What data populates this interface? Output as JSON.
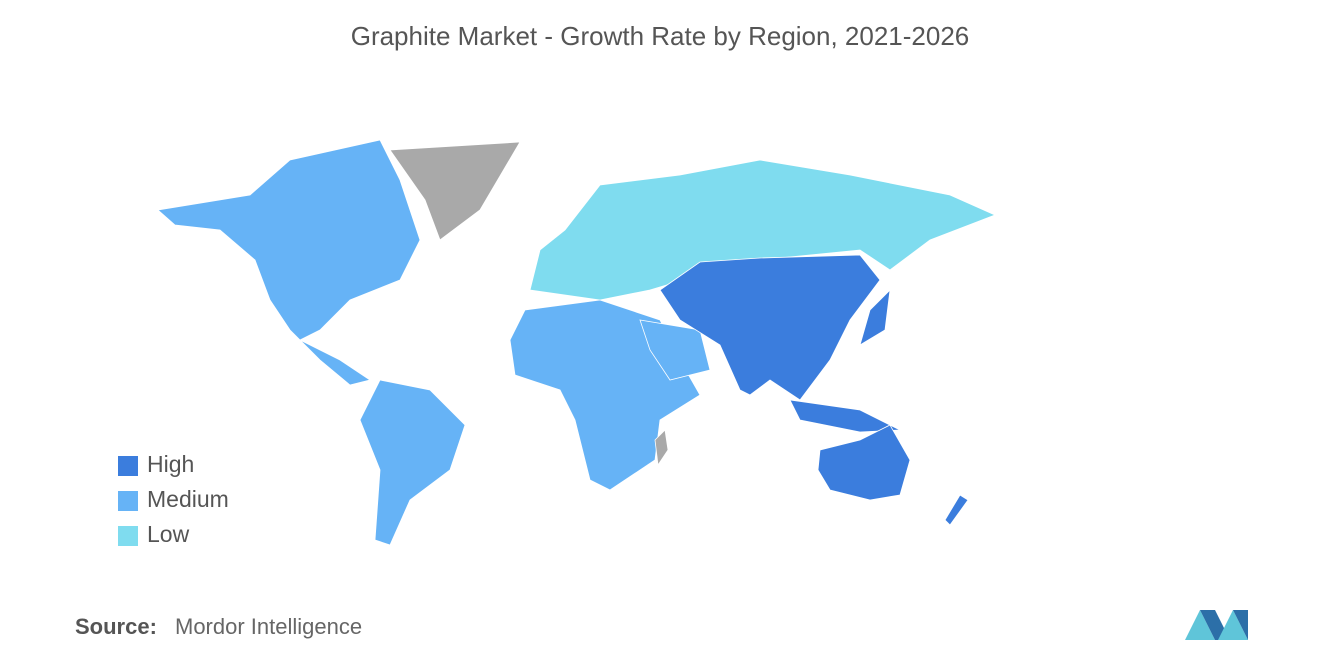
{
  "title": "Graphite Market - Growth Rate by Region, 2021-2026",
  "legend": [
    {
      "label": "High",
      "color": "#3b7ddd"
    },
    {
      "label": "Medium",
      "color": "#66b3f6"
    },
    {
      "label": "Low",
      "color": "#7fdcef"
    }
  ],
  "no_data_color": "#a9a9a9",
  "source": {
    "label": "Source:",
    "text": "Mordor Intelligence"
  }
}
